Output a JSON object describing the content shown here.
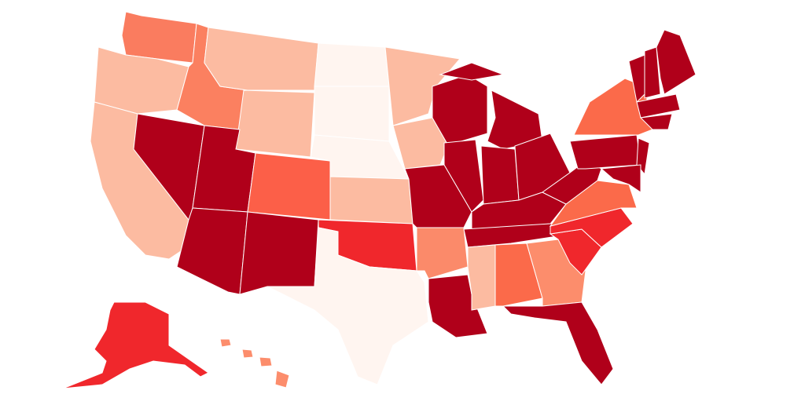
{
  "map": {
    "region_colors": [
      "#fa7c5f",
      "#fcbba1",
      "#fcbba1",
      "#b0001a",
      "#fb8060",
      "#fcbba1",
      "#fcbba1",
      "#b0001a",
      "#b0001a",
      "#fc5f48",
      "#b0001a",
      "#fff5f0",
      "#fff5f0",
      "#fff5f0",
      "#fcbba1",
      "#f0272c",
      "#fff5f0",
      "#fcbba1",
      "#fcbba1",
      "#b0001a",
      "#fb8a6a",
      "#b0001a",
      "#b0001a",
      "#b0001a",
      "#b0001a",
      "#b0001a",
      "#b0001a",
      "#b0001a",
      "#b0001a",
      "#b0001a",
      "#fcbba1",
      "#fb6a4a",
      "#fc8d6c",
      "#b0001a",
      "#f0272c",
      "#f0272c",
      "#fb6a4a",
      "#b0001a",
      "#b0001a",
      "#fb6a4a",
      "#b0001a",
      "#b0001a",
      "#b0001a",
      "#b0001a",
      "#b0001a",
      "#b0001a",
      "#b0001a",
      "#f0272c",
      "#fc8d6c",
      "#fc8d6c",
      "#fc8d6c",
      "#fc8d6c"
    ]
  }
}
